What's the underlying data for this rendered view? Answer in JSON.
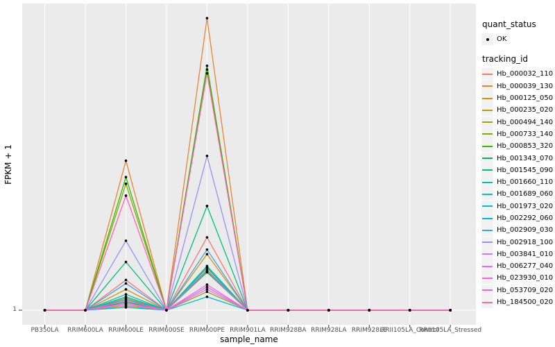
{
  "chart_data": {
    "type": "line",
    "title": "",
    "xlabel": "sample_name",
    "ylabel": "FPKM + 1",
    "y_scale": "log10",
    "y_tick_labels": [
      "1"
    ],
    "panel_background": "#EBEBEB",
    "gridline_color": "#FFFFFF",
    "axis_text_color": "#4D4D4D",
    "point_color": "#000000",
    "categories": [
      "PB350LA",
      "RRIM600LA",
      "RRIM600LE",
      "RRIM600SE",
      "RRIM600PE",
      "RRIM901LA",
      "RRIM928BA",
      "RRIM928LA",
      "RRIM928LE",
      "RRII105LA_Control",
      "RRII105LA_Stressed"
    ],
    "legend": {
      "quant_status_title": "quant_status",
      "quant_status_items": [
        {
          "label": "OK",
          "symbol": "black-point"
        }
      ],
      "tracking_id_title": "tracking_id"
    },
    "series": [
      {
        "name": "Hb_000032_110",
        "color": "#F8766D",
        "values": [
          1,
          1,
          1.24,
          1,
          1.68,
          1,
          1,
          1,
          1,
          1,
          1
        ]
      },
      {
        "name": "Hb_000039_130",
        "color": "#EA8331",
        "values": [
          1,
          1,
          2.9,
          1,
          8.0,
          1,
          1,
          1,
          1,
          1,
          1
        ]
      },
      {
        "name": "Hb_000125_050",
        "color": "#D89000",
        "values": [
          1,
          1,
          1.16,
          1,
          1.49,
          1,
          1,
          1,
          1,
          1,
          1
        ]
      },
      {
        "name": "Hb_000235_020",
        "color": "#C09B00",
        "values": [
          1,
          1,
          1.09,
          1,
          1.35,
          1,
          1,
          1,
          1,
          1,
          1
        ]
      },
      {
        "name": "Hb_000494_140",
        "color": "#A3A500",
        "values": [
          1,
          1,
          1.03,
          1,
          1.14,
          1,
          1,
          1,
          1,
          1,
          1
        ]
      },
      {
        "name": "Hb_000733_140",
        "color": "#7CAE00",
        "values": [
          1,
          1,
          2.46,
          1,
          5.55,
          1,
          1,
          1,
          1,
          1,
          1
        ]
      },
      {
        "name": "Hb_000853_320",
        "color": "#39B600",
        "values": [
          1,
          1,
          2.58,
          1,
          5.7,
          1,
          1,
          1,
          1,
          1,
          1
        ]
      },
      {
        "name": "Hb_001343_070",
        "color": "#00BB4E",
        "values": [
          1,
          1,
          1.06,
          1,
          1.31,
          1,
          1,
          1,
          1,
          1,
          1
        ]
      },
      {
        "name": "Hb_001545_090",
        "color": "#00BF7D",
        "values": [
          1,
          1,
          1.41,
          1,
          2.1,
          1,
          1,
          1,
          1,
          1,
          1
        ]
      },
      {
        "name": "Hb_001660_110",
        "color": "#00C1A3",
        "values": [
          1,
          1,
          1.12,
          1,
          1.37,
          1,
          1,
          1,
          1,
          1,
          1
        ]
      },
      {
        "name": "Hb_001689_060",
        "color": "#00BFC4",
        "values": [
          1,
          1,
          1.1,
          1,
          1.36,
          1,
          1,
          1,
          1,
          1,
          1
        ]
      },
      {
        "name": "Hb_001973_020",
        "color": "#00BAE0",
        "values": [
          1,
          1,
          1.02,
          1,
          1.1,
          1,
          1,
          1,
          1,
          1,
          1
        ]
      },
      {
        "name": "Hb_002292_060",
        "color": "#00B0F6",
        "values": [
          1,
          1,
          1.08,
          1,
          1.33,
          1,
          1,
          1,
          1,
          1,
          1
        ]
      },
      {
        "name": "Hb_002909_030",
        "color": "#35A2FF",
        "values": [
          1,
          1,
          1.21,
          1,
          1.54,
          1,
          1,
          1,
          1,
          1,
          1
        ]
      },
      {
        "name": "Hb_002918_100",
        "color": "#9590FF",
        "values": [
          1,
          1,
          1.64,
          1,
          3.0,
          1,
          1,
          1,
          1,
          1,
          1
        ]
      },
      {
        "name": "Hb_003841_010",
        "color": "#C77CFF",
        "values": [
          1,
          1,
          1.04,
          1,
          1.16,
          1,
          1,
          1,
          1,
          1,
          1
        ]
      },
      {
        "name": "Hb_006277_040",
        "color": "#E76BF3",
        "values": [
          1,
          1,
          1.05,
          1,
          1.2,
          1,
          1,
          1,
          1,
          1,
          1
        ]
      },
      {
        "name": "Hb_023930_010",
        "color": "#FA62DB",
        "values": [
          1,
          1,
          1.05,
          1,
          1.18,
          1,
          1,
          1,
          1,
          1,
          1
        ]
      },
      {
        "name": "Hb_053709_020",
        "color": "#FF62BC",
        "values": [
          1,
          1,
          2.26,
          1,
          5.4,
          1,
          1,
          1,
          1,
          1,
          1
        ]
      },
      {
        "name": "Hb_184500_020",
        "color": "#FF6A98",
        "values": [
          1,
          1,
          1.07,
          1,
          1.32,
          1,
          1,
          1,
          1,
          1,
          1
        ]
      }
    ]
  }
}
